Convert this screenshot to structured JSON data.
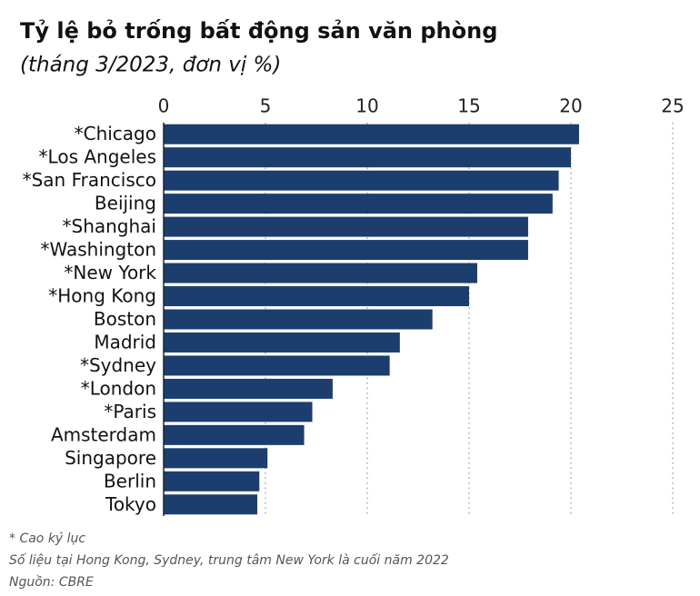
{
  "chart_data": {
    "type": "bar",
    "orientation": "horizontal",
    "title": "Tỷ lệ bỏ trống bất động sản văn phòng",
    "subtitle": "(tháng 3/2023, đơn vị %)",
    "categories": [
      "*Chicago",
      "*Los Angeles",
      "*San Francisco",
      "Beijing",
      "*Shanghai",
      "*Washington",
      "*New York",
      "*Hong Kong",
      "Boston",
      "Madrid",
      "*Sydney",
      "*London",
      "*Paris",
      "Amsterdam",
      "Singapore",
      "Berlin",
      "Tokyo"
    ],
    "values": [
      20.4,
      20.0,
      19.4,
      19.1,
      17.9,
      17.9,
      15.4,
      15.0,
      13.2,
      11.6,
      11.1,
      8.3,
      7.3,
      6.9,
      5.1,
      4.7,
      4.6
    ],
    "color": "#1b3e6f",
    "xlim": [
      0,
      25
    ],
    "xticks": [
      0,
      5,
      10,
      15,
      20,
      25
    ],
    "grid": true,
    "notes": [
      "* Cao kỷ lục",
      "Số liệu tại Hong Kong, Sydney, trung tâm New York là cuối năm 2022",
      "Nguồn: CBRE"
    ]
  }
}
